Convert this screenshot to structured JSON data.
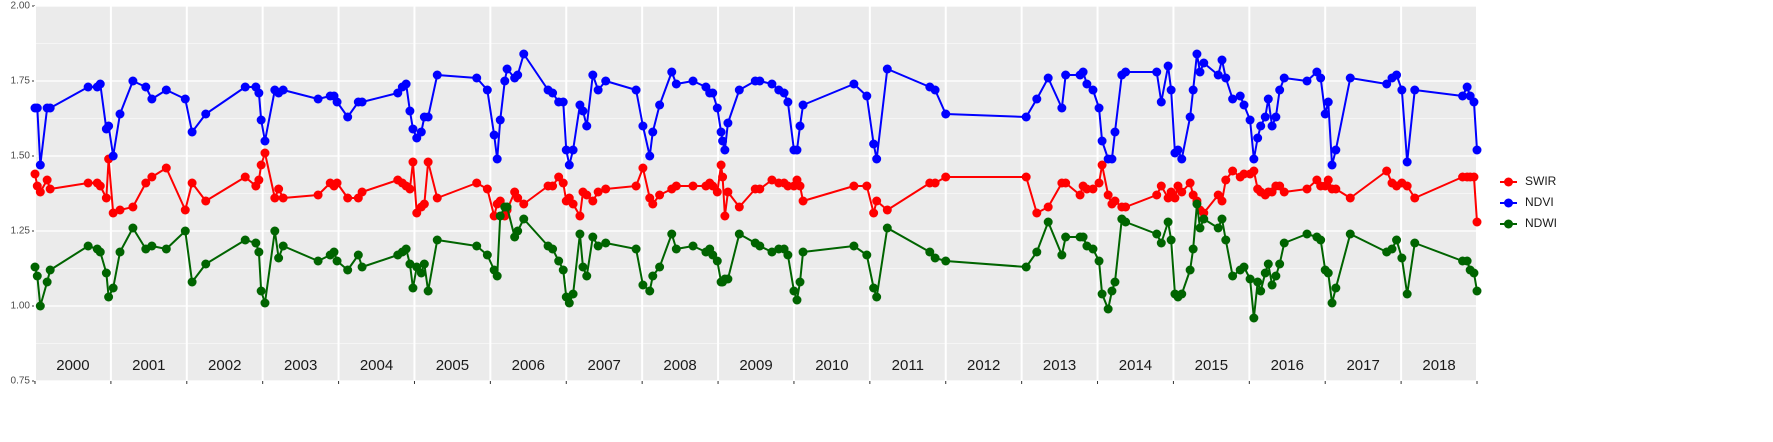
{
  "chart_data": {
    "type": "line",
    "x": [
      2000.0,
      2000.03,
      2000.07,
      2000.16,
      2000.2,
      2000.7,
      2000.82,
      2000.86,
      2000.94,
      2000.97,
      2001.03,
      2001.12,
      2001.29,
      2001.46,
      2001.54,
      2001.73,
      2001.98,
      2002.07,
      2002.25,
      2002.77,
      2002.91,
      2002.95,
      2002.98,
      2003.03,
      2003.16,
      2003.21,
      2003.27,
      2003.73,
      2003.89,
      2003.94,
      2003.98,
      2004.12,
      2004.26,
      2004.31,
      2004.78,
      2004.84,
      2004.89,
      2004.94,
      2004.98,
      2005.03,
      2005.09,
      2005.13,
      2005.18,
      2005.3,
      2005.82,
      2005.96,
      2006.05,
      2006.09,
      2006.13,
      2006.19,
      2006.22,
      2006.32,
      2006.36,
      2006.44,
      2006.76,
      2006.82,
      2006.9,
      2006.96,
      2007.0,
      2007.04,
      2007.09,
      2007.18,
      2007.22,
      2007.27,
      2007.35,
      2007.42,
      2007.52,
      2007.92,
      2008.01,
      2008.1,
      2008.14,
      2008.23,
      2008.39,
      2008.45,
      2008.67,
      2008.84,
      2008.89,
      2008.93,
      2008.99,
      2009.04,
      2009.06,
      2009.09,
      2009.13,
      2009.28,
      2009.49,
      2009.55,
      2009.71,
      2009.8,
      2009.87,
      2009.92,
      2010.0,
      2010.04,
      2010.08,
      2010.12,
      2010.79,
      2010.96,
      2011.05,
      2011.09,
      2011.23,
      2011.79,
      2011.86,
      2012.0,
      2013.06,
      2013.2,
      2013.35,
      2013.53,
      2013.58,
      2013.77,
      2013.81,
      2013.86,
      2013.94,
      2014.02,
      2014.06,
      2014.14,
      2014.19,
      2014.23,
      2014.32,
      2014.37,
      2014.78,
      2014.84,
      2014.93,
      2014.97,
      2015.02,
      2015.06,
      2015.11,
      2015.22,
      2015.26,
      2015.31,
      2015.35,
      2015.4,
      2015.59,
      2015.64,
      2015.69,
      2015.78,
      2015.88,
      2015.93,
      2016.01,
      2016.06,
      2016.11,
      2016.15,
      2016.21,
      2016.25,
      2016.3,
      2016.35,
      2016.4,
      2016.46,
      2016.76,
      2016.89,
      2016.94,
      2017.0,
      2017.04,
      2017.09,
      2017.14,
      2017.33,
      2017.81,
      2017.88,
      2017.94,
      2018.01,
      2018.08,
      2018.18,
      2018.81,
      2018.87,
      2018.91,
      2018.96,
      2019.0
    ],
    "series": [
      {
        "name": "SWIR",
        "color": "#ff0000",
        "values": [
          1.44,
          1.4,
          1.38,
          1.42,
          1.39,
          1.41,
          1.41,
          1.4,
          1.36,
          1.49,
          1.31,
          1.32,
          1.33,
          1.41,
          1.43,
          1.46,
          1.32,
          1.41,
          1.35,
          1.43,
          1.4,
          1.42,
          1.47,
          1.51,
          1.36,
          1.39,
          1.36,
          1.37,
          1.41,
          1.4,
          1.41,
          1.36,
          1.36,
          1.38,
          1.42,
          1.41,
          1.4,
          1.39,
          1.48,
          1.31,
          1.33,
          1.34,
          1.48,
          1.36,
          1.41,
          1.39,
          1.3,
          1.34,
          1.35,
          1.3,
          1.32,
          1.38,
          1.36,
          1.34,
          1.4,
          1.4,
          1.43,
          1.41,
          1.35,
          1.36,
          1.34,
          1.3,
          1.38,
          1.37,
          1.35,
          1.38,
          1.39,
          1.4,
          1.46,
          1.36,
          1.34,
          1.37,
          1.39,
          1.4,
          1.4,
          1.4,
          1.41,
          1.4,
          1.38,
          1.47,
          1.43,
          1.3,
          1.38,
          1.33,
          1.39,
          1.39,
          1.42,
          1.41,
          1.41,
          1.4,
          1.4,
          1.42,
          1.4,
          1.35,
          1.4,
          1.4,
          1.31,
          1.35,
          1.32,
          1.41,
          1.41,
          1.43,
          1.43,
          1.31,
          1.33,
          1.41,
          1.41,
          1.37,
          1.4,
          1.39,
          1.39,
          1.41,
          1.47,
          1.37,
          1.34,
          1.35,
          1.33,
          1.33,
          1.37,
          1.4,
          1.36,
          1.38,
          1.36,
          1.4,
          1.38,
          1.41,
          1.37,
          1.35,
          1.32,
          1.31,
          1.37,
          1.35,
          1.42,
          1.45,
          1.43,
          1.44,
          1.44,
          1.45,
          1.39,
          1.38,
          1.37,
          1.38,
          1.38,
          1.4,
          1.4,
          1.38,
          1.39,
          1.42,
          1.4,
          1.4,
          1.42,
          1.39,
          1.39,
          1.36,
          1.45,
          1.41,
          1.4,
          1.41,
          1.4,
          1.36,
          1.43,
          1.43,
          1.43,
          1.43,
          1.28
        ]
      },
      {
        "name": "NDVI",
        "color": "#0000ff",
        "values": [
          1.66,
          1.66,
          1.47,
          1.66,
          1.66,
          1.73,
          1.73,
          1.74,
          1.59,
          1.6,
          1.5,
          1.64,
          1.75,
          1.73,
          1.69,
          1.72,
          1.69,
          1.58,
          1.64,
          1.73,
          1.73,
          1.71,
          1.62,
          1.55,
          1.72,
          1.71,
          1.72,
          1.69,
          1.7,
          1.7,
          1.68,
          1.63,
          1.68,
          1.68,
          1.71,
          1.73,
          1.74,
          1.65,
          1.59,
          1.56,
          1.58,
          1.63,
          1.63,
          1.77,
          1.76,
          1.72,
          1.57,
          1.49,
          1.62,
          1.75,
          1.79,
          1.76,
          1.77,
          1.84,
          1.72,
          1.71,
          1.68,
          1.68,
          1.52,
          1.47,
          1.52,
          1.67,
          1.65,
          1.6,
          1.77,
          1.72,
          1.75,
          1.72,
          1.6,
          1.5,
          1.58,
          1.67,
          1.78,
          1.74,
          1.75,
          1.73,
          1.71,
          1.71,
          1.66,
          1.58,
          1.55,
          1.52,
          1.61,
          1.72,
          1.75,
          1.75,
          1.74,
          1.72,
          1.71,
          1.68,
          1.52,
          1.52,
          1.6,
          1.67,
          1.74,
          1.7,
          1.54,
          1.49,
          1.79,
          1.73,
          1.72,
          1.64,
          1.63,
          1.69,
          1.76,
          1.66,
          1.77,
          1.77,
          1.78,
          1.74,
          1.72,
          1.66,
          1.55,
          1.49,
          1.49,
          1.58,
          1.77,
          1.78,
          1.78,
          1.68,
          1.8,
          1.72,
          1.51,
          1.52,
          1.49,
          1.63,
          1.72,
          1.84,
          1.78,
          1.81,
          1.77,
          1.82,
          1.76,
          1.69,
          1.7,
          1.67,
          1.62,
          1.49,
          1.56,
          1.6,
          1.63,
          1.69,
          1.6,
          1.63,
          1.72,
          1.76,
          1.75,
          1.78,
          1.76,
          1.64,
          1.68,
          1.47,
          1.52,
          1.76,
          1.74,
          1.76,
          1.77,
          1.72,
          1.48,
          1.72,
          1.7,
          1.73,
          1.7,
          1.68,
          1.52
        ]
      },
      {
        "name": "NDWI",
        "color": "#006400",
        "values": [
          1.13,
          1.1,
          1.0,
          1.08,
          1.12,
          1.2,
          1.19,
          1.18,
          1.11,
          1.03,
          1.06,
          1.18,
          1.26,
          1.19,
          1.2,
          1.19,
          1.25,
          1.08,
          1.14,
          1.22,
          1.21,
          1.18,
          1.05,
          1.01,
          1.25,
          1.16,
          1.2,
          1.15,
          1.17,
          1.18,
          1.15,
          1.12,
          1.17,
          1.13,
          1.17,
          1.18,
          1.19,
          1.14,
          1.06,
          1.13,
          1.11,
          1.14,
          1.05,
          1.22,
          1.2,
          1.17,
          1.12,
          1.1,
          1.3,
          1.33,
          1.33,
          1.23,
          1.25,
          1.29,
          1.2,
          1.19,
          1.15,
          1.12,
          1.03,
          1.01,
          1.04,
          1.24,
          1.13,
          1.1,
          1.23,
          1.2,
          1.21,
          1.19,
          1.07,
          1.05,
          1.1,
          1.13,
          1.24,
          1.19,
          1.2,
          1.18,
          1.19,
          1.17,
          1.15,
          1.08,
          1.08,
          1.09,
          1.09,
          1.24,
          1.21,
          1.2,
          1.18,
          1.19,
          1.19,
          1.17,
          1.05,
          1.02,
          1.08,
          1.18,
          1.2,
          1.17,
          1.06,
          1.03,
          1.26,
          1.18,
          1.16,
          1.15,
          1.13,
          1.18,
          1.28,
          1.17,
          1.23,
          1.23,
          1.23,
          1.2,
          1.19,
          1.15,
          1.04,
          0.99,
          1.05,
          1.08,
          1.29,
          1.28,
          1.24,
          1.21,
          1.28,
          1.22,
          1.04,
          1.03,
          1.04,
          1.12,
          1.19,
          1.34,
          1.26,
          1.29,
          1.26,
          1.29,
          1.22,
          1.1,
          1.12,
          1.13,
          1.09,
          0.96,
          1.08,
          1.05,
          1.11,
          1.14,
          1.07,
          1.1,
          1.14,
          1.21,
          1.24,
          1.23,
          1.22,
          1.12,
          1.11,
          1.01,
          1.06,
          1.24,
          1.18,
          1.19,
          1.22,
          1.16,
          1.04,
          1.21,
          1.15,
          1.15,
          1.12,
          1.11,
          1.05
        ]
      }
    ],
    "xlim": [
      2000,
      2019
    ],
    "xticks": [
      2000,
      2001,
      2002,
      2003,
      2004,
      2005,
      2006,
      2007,
      2008,
      2009,
      2010,
      2011,
      2012,
      2013,
      2014,
      2015,
      2016,
      2017,
      2018,
      2019
    ],
    "ylim": [
      0.75,
      2.0
    ],
    "yticks": [
      0.75,
      {
        "value": 1.0,
        "label": "1.00"
      },
      1.25,
      {
        "value": 1.5,
        "label": "1.50"
      },
      1.75,
      {
        "value": 2.0,
        "label": "2.00"
      }
    ],
    "year_labels": [
      {
        "x": 2000.5,
        "text": "2000"
      },
      {
        "x": 2001.5,
        "text": "2001"
      },
      {
        "x": 2002.5,
        "text": "2002"
      },
      {
        "x": 2003.5,
        "text": "2003"
      },
      {
        "x": 2004.5,
        "text": "2004"
      },
      {
        "x": 2005.5,
        "text": "2005"
      },
      {
        "x": 2006.5,
        "text": "2006"
      },
      {
        "x": 2007.5,
        "text": "2007"
      },
      {
        "x": 2008.5,
        "text": "2008"
      },
      {
        "x": 2009.5,
        "text": "2009"
      },
      {
        "x": 2010.5,
        "text": "2010"
      },
      {
        "x": 2011.5,
        "text": "2011"
      },
      {
        "x": 2012.5,
        "text": "2012"
      },
      {
        "x": 2013.5,
        "text": "2013"
      },
      {
        "x": 2014.5,
        "text": "2014"
      },
      {
        "x": 2015.5,
        "text": "2015"
      },
      {
        "x": 2016.5,
        "text": "2016"
      },
      {
        "x": 2017.5,
        "text": "2017"
      },
      {
        "x": 2018.5,
        "text": "2018"
      }
    ],
    "grid": true,
    "legend": "right"
  }
}
